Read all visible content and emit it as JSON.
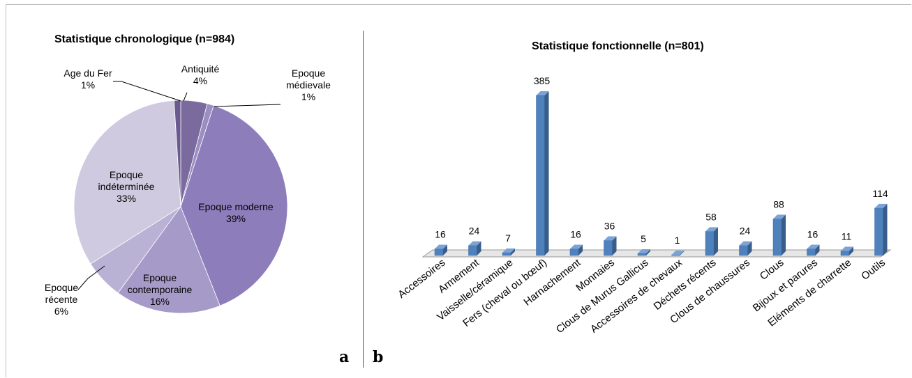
{
  "chart_data": [
    {
      "type": "pie",
      "title": "Statistique chronologique (n=984)",
      "panel_label": "a",
      "slices": [
        {
          "label": "Antiquité",
          "percent_label": "4%",
          "value": 4,
          "color": "#7a6a9e"
        },
        {
          "label": "Epoque médievale",
          "percent_label": "1%",
          "value": 1,
          "color": "#9a8fc0"
        },
        {
          "label": "Epoque moderne",
          "percent_label": "39%",
          "value": 39,
          "color": "#8e7dbb"
        },
        {
          "label": "Epoque contemporaine",
          "percent_label": "16%",
          "value": 16,
          "color": "#a69bc8"
        },
        {
          "label": "Epoque récente",
          "percent_label": "6%",
          "value": 6,
          "color": "#bab2d4"
        },
        {
          "label": "Epoque indéterminée",
          "percent_label": "33%",
          "value": 33,
          "color": "#cfcadf"
        },
        {
          "label": "Age du Fer",
          "percent_label": "1%",
          "value": 1,
          "color": "#6b5a90"
        }
      ]
    },
    {
      "type": "bar",
      "title": "Statistique fonctionnelle (n=801)",
      "panel_label": "b",
      "style": "3d-columns",
      "color": "#4f81bd",
      "categories": [
        "Accessoires",
        "Armement",
        "Vaisselle/céramique",
        "Fers (cheval ou bœuf)",
        "Harnachement",
        "Monnaies",
        "Clous de Murus Gallicus",
        "Accessoires de chevaux",
        "Déchets récents",
        "Clous de chaussures",
        "Clous",
        "Bijoux et parures",
        "Eléments de charrette",
        "Outils"
      ],
      "values": [
        16,
        24,
        7,
        385,
        16,
        36,
        5,
        1,
        58,
        24,
        88,
        16,
        11,
        114
      ],
      "value_labels": [
        "16",
        "24",
        "7",
        "385",
        "16",
        "36",
        "5",
        "1",
        "58",
        "24",
        "88",
        "16",
        "11",
        "114"
      ],
      "ylim": [
        0,
        385
      ]
    }
  ]
}
